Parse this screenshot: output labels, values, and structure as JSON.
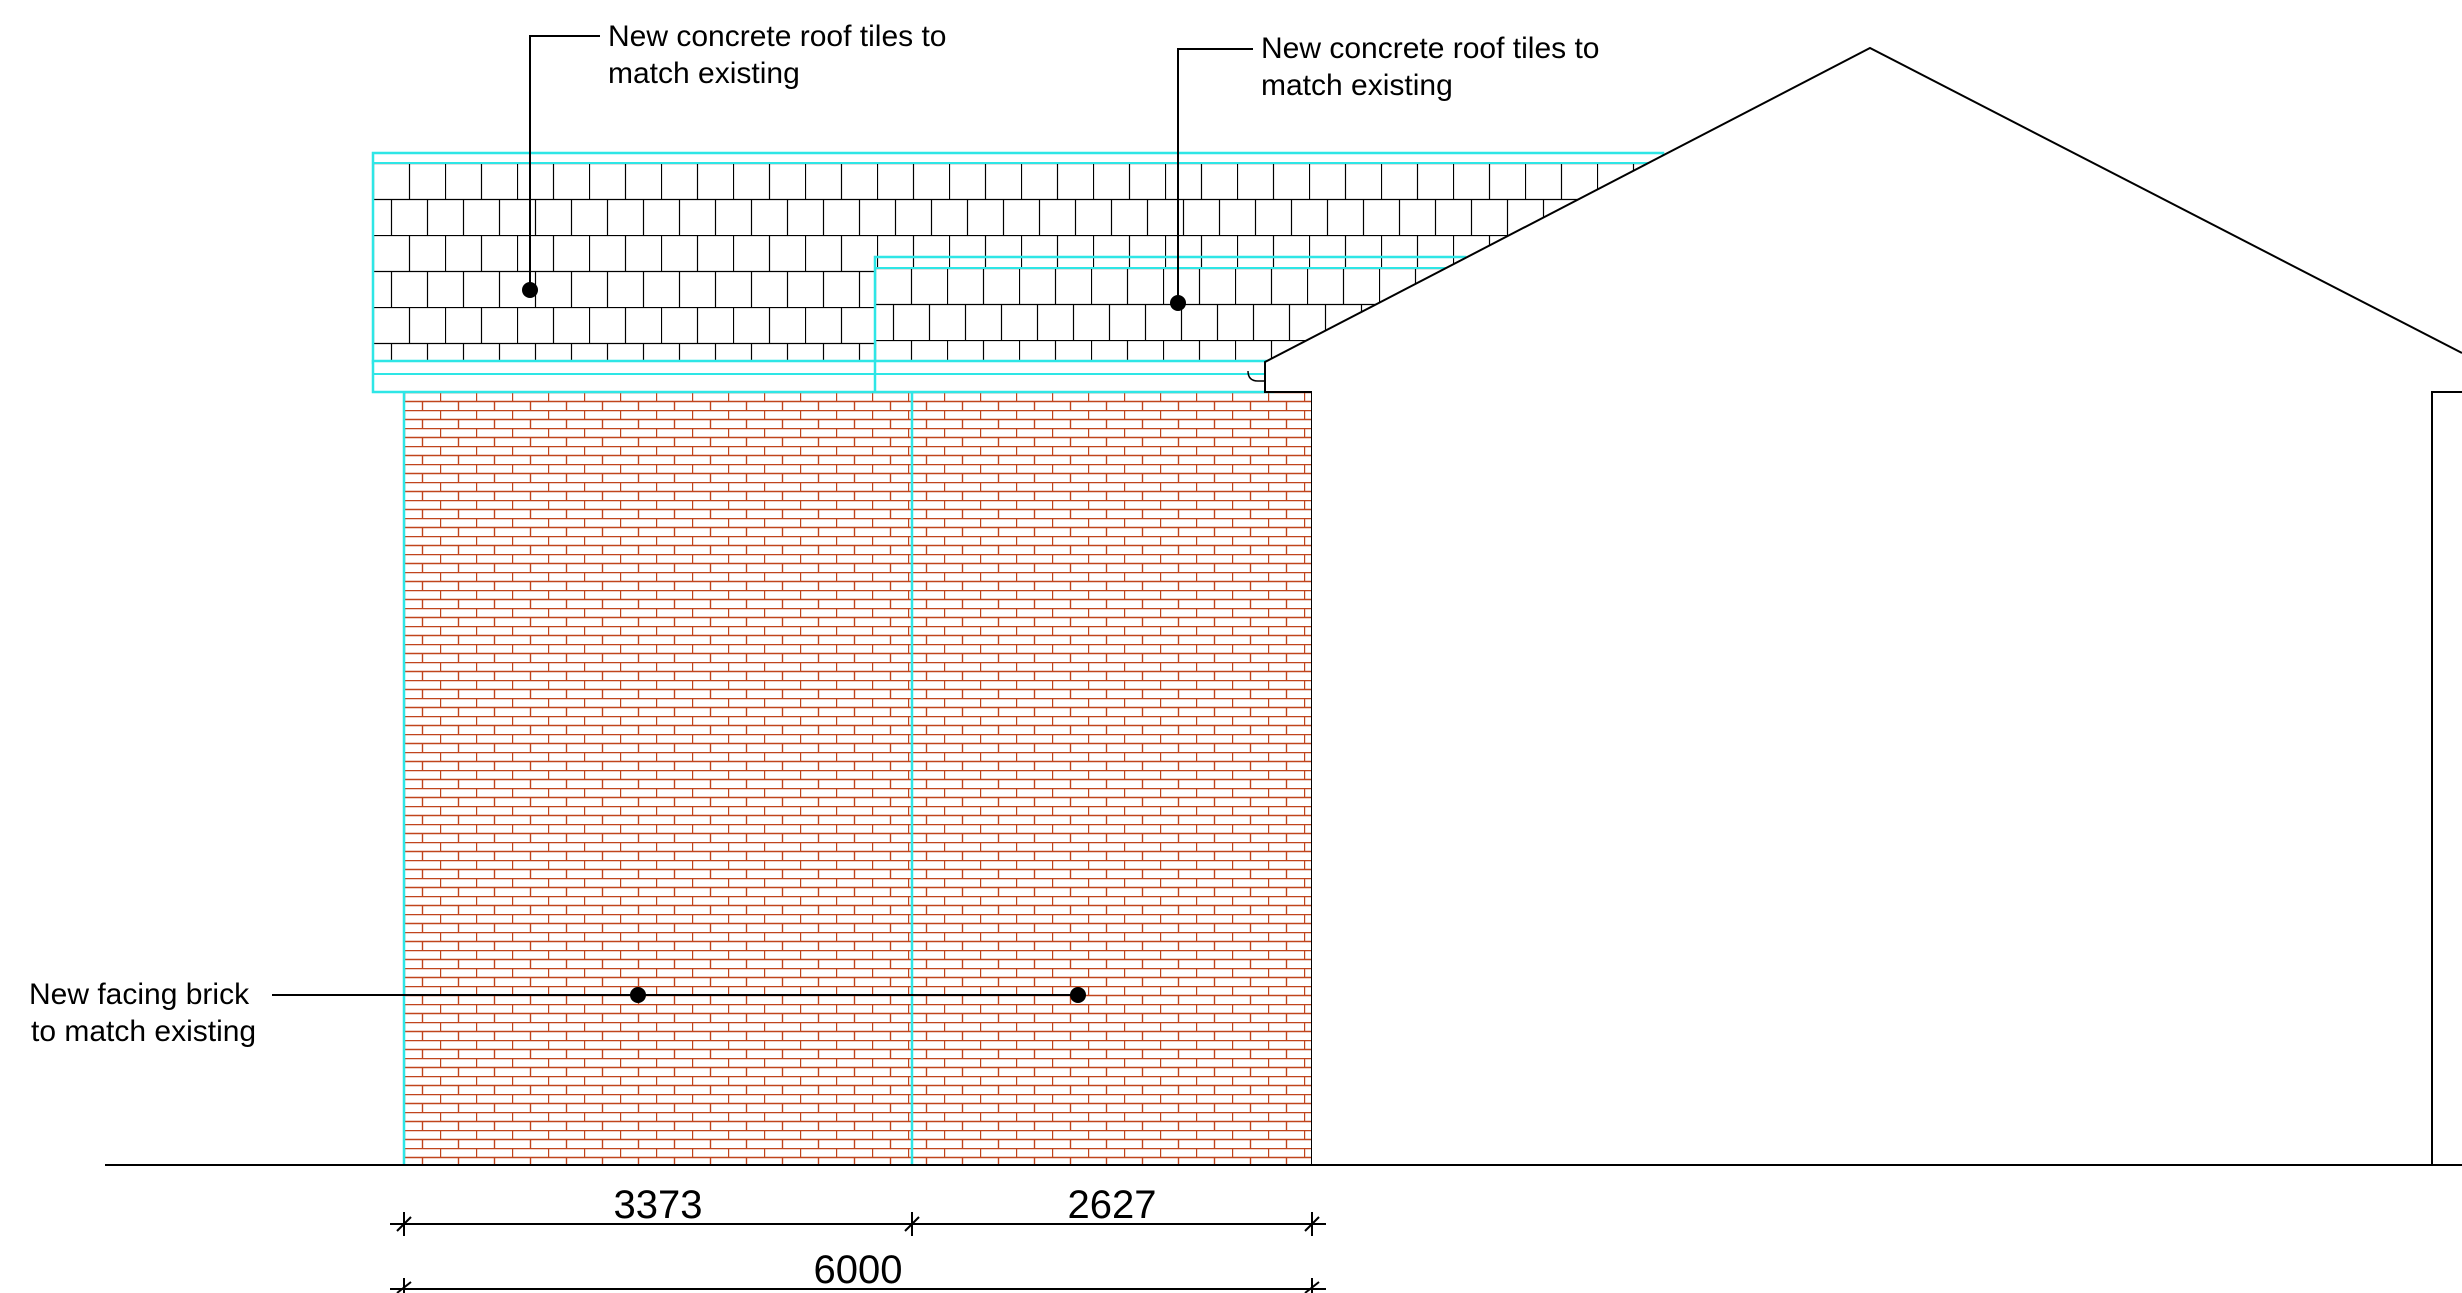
{
  "annotations": {
    "roof_tiles_left": {
      "line1": "New concrete roof tiles to",
      "line2": "match existing"
    },
    "roof_tiles_right": {
      "line1": "New concrete roof tiles to",
      "line2": "match existing"
    },
    "facing_brick": {
      "line1": "New facing brick",
      "line2": "to match existing"
    }
  },
  "dimensions": {
    "left": "3373",
    "right": "2627",
    "overall": "6000"
  },
  "colors": {
    "brick": "#c0441c",
    "outline": "#2ee6e6",
    "line": "#000000"
  }
}
